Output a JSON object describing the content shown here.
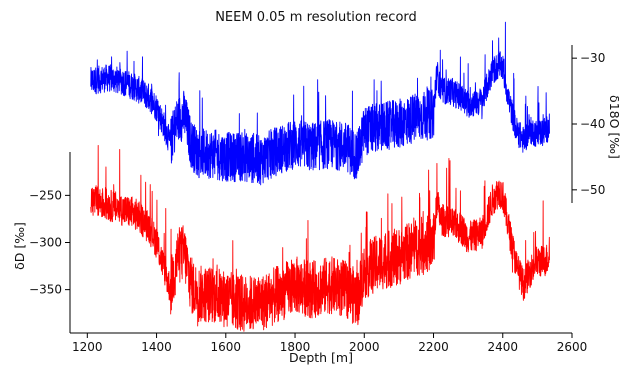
{
  "chart_data": {
    "type": "line",
    "title": "NEEM 0.05 m resolution record",
    "xlabel": "Depth [m]",
    "xlim": [
      1150,
      2600
    ],
    "xticks": [
      "1200",
      "1400",
      "1600",
      "1800",
      "2000",
      "2200",
      "2400",
      "2600"
    ],
    "grid": false,
    "legend": "none",
    "series": [
      {
        "ylabel": "δ18O [‰]",
        "axis_side": "right",
        "color": "#0000ff",
        "ylim": [
          -52,
          -28
        ],
        "yticks": [
          "−30",
          "−40",
          "−50"
        ],
        "x": [
          1210,
          1260,
          1300,
          1340,
          1380,
          1400,
          1420,
          1440,
          1460,
          1480,
          1500,
          1520,
          1560,
          1600,
          1650,
          1700,
          1750,
          1800,
          1850,
          1900,
          1950,
          1980,
          2000,
          2050,
          2100,
          2150,
          2200,
          2210,
          2220,
          2250,
          2280,
          2300,
          2340,
          2370,
          2390,
          2400,
          2420,
          2440,
          2460,
          2480,
          2500,
          2520,
          2535
        ],
        "values": [
          -33.5,
          -33.0,
          -33.5,
          -34.5,
          -36.0,
          -37.5,
          -40.0,
          -43.0,
          -39.5,
          -38.5,
          -43.0,
          -44.5,
          -44.5,
          -45.0,
          -45.0,
          -45.5,
          -44.0,
          -43.0,
          -43.5,
          -43.0,
          -43.5,
          -45.0,
          -41.0,
          -40.5,
          -40.0,
          -39.0,
          -38.5,
          -32.0,
          -35.0,
          -35.0,
          -36.0,
          -37.0,
          -36.5,
          -32.0,
          -31.0,
          -31.5,
          -37.0,
          -41.0,
          -42.5,
          -41.0,
          -41.5,
          -41.0,
          -40.5
        ]
      },
      {
        "ylabel": "δD [‰]",
        "axis_side": "left",
        "color": "#ff0000",
        "ylim": [
          -396,
          -204
        ],
        "yticks": [
          "−250",
          "−300",
          "−350"
        ],
        "x": [
          1210,
          1260,
          1300,
          1340,
          1380,
          1400,
          1420,
          1440,
          1460,
          1480,
          1500,
          1520,
          1560,
          1600,
          1650,
          1700,
          1750,
          1800,
          1850,
          1900,
          1950,
          1980,
          2000,
          2050,
          2100,
          2150,
          2200,
          2210,
          2220,
          2250,
          2280,
          2300,
          2340,
          2370,
          2390,
          2400,
          2420,
          2440,
          2460,
          2480,
          2500,
          2520,
          2535
        ],
        "values": [
          -255,
          -260,
          -265,
          -270,
          -285,
          -300,
          -325,
          -350,
          -315,
          -310,
          -345,
          -355,
          -355,
          -360,
          -365,
          -365,
          -355,
          -345,
          -350,
          -345,
          -350,
          -360,
          -330,
          -320,
          -315,
          -305,
          -300,
          -255,
          -275,
          -280,
          -285,
          -295,
          -290,
          -255,
          -245,
          -250,
          -290,
          -325,
          -345,
          -330,
          -320,
          -320,
          -315
        ]
      }
    ]
  }
}
